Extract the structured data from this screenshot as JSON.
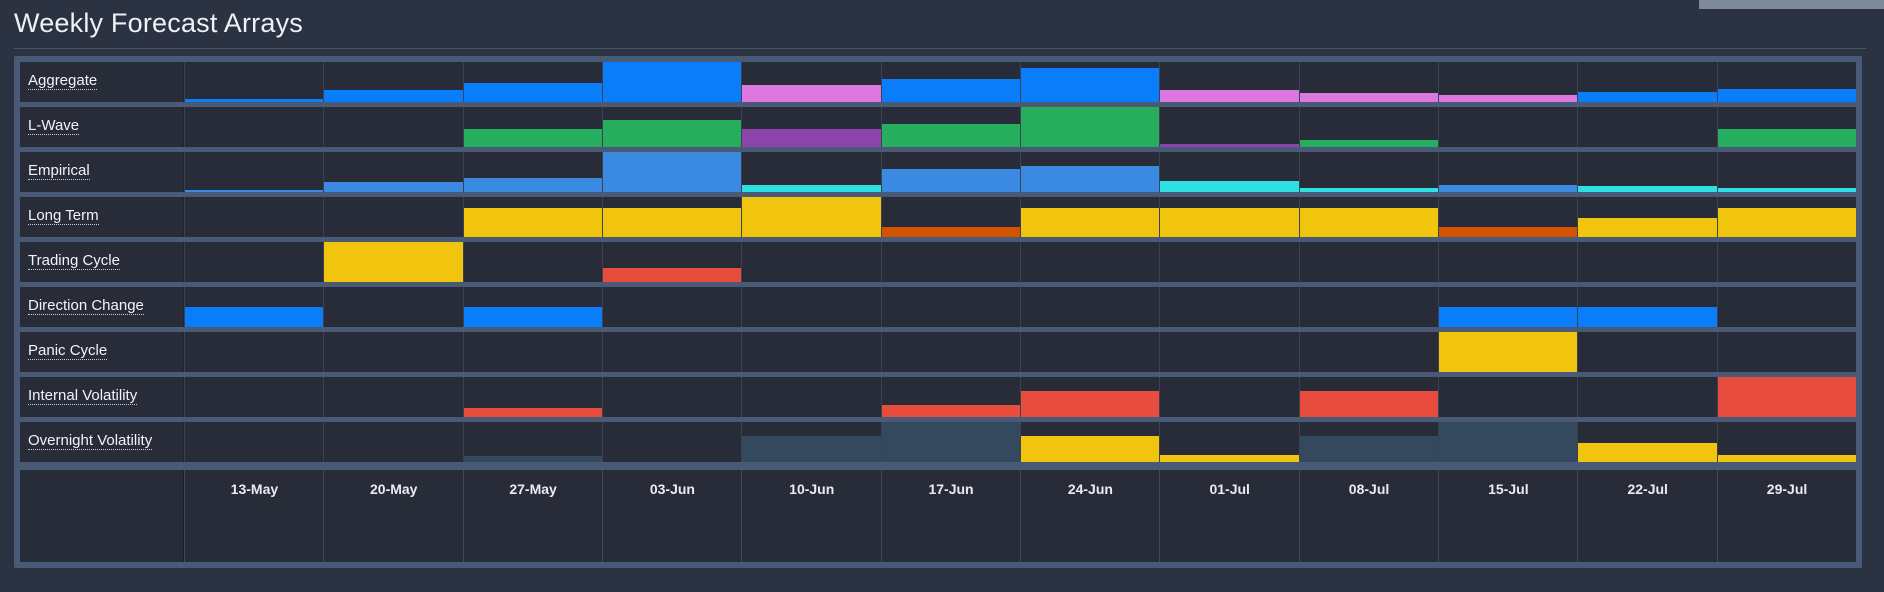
{
  "title": "Weekly Forecast Arrays",
  "colors": {
    "blue": "#0a7dfb",
    "pink": "#dc79e0",
    "green": "#27ad5e",
    "purple": "#8e44ad",
    "steel_blue": "#3a8ae2",
    "cyan": "#2fe0e3",
    "yellow": "#f1c50d",
    "orange": "#d35400",
    "red": "#e74c3c",
    "slate": "#34495e"
  },
  "weeks": [
    "13-May",
    "20-May",
    "27-May",
    "03-Jun",
    "10-Jun",
    "17-Jun",
    "24-Jun",
    "01-Jul",
    "08-Jul",
    "15-Jul",
    "22-Jul",
    "29-Jul"
  ],
  "rows": [
    {
      "label": "Aggregate",
      "cells": [
        {
          "level": 0.08,
          "color": "blue"
        },
        {
          "level": 0.3,
          "color": "blue"
        },
        {
          "level": 0.48,
          "color": "blue"
        },
        {
          "level": 1.0,
          "color": "blue"
        },
        {
          "level": 0.42,
          "color": "pink"
        },
        {
          "level": 0.58,
          "color": "blue"
        },
        {
          "level": 0.85,
          "color": "blue"
        },
        {
          "level": 0.3,
          "color": "pink"
        },
        {
          "level": 0.22,
          "color": "pink"
        },
        {
          "level": 0.18,
          "color": "pink"
        },
        {
          "level": 0.25,
          "color": "blue"
        },
        {
          "level": 0.33,
          "color": "blue"
        }
      ]
    },
    {
      "label": "L-Wave",
      "cells": [
        {
          "level": 0,
          "color": "green"
        },
        {
          "level": 0,
          "color": "green"
        },
        {
          "level": 0.46,
          "color": "green"
        },
        {
          "level": 0.68,
          "color": "green"
        },
        {
          "level": 0.46,
          "color": "purple"
        },
        {
          "level": 0.58,
          "color": "green"
        },
        {
          "level": 1.0,
          "color": "green"
        },
        {
          "level": 0.08,
          "color": "purple"
        },
        {
          "level": 0.18,
          "color": "green"
        },
        {
          "level": 0,
          "color": "green"
        },
        {
          "level": 0,
          "color": "green"
        },
        {
          "level": 0.46,
          "color": "green"
        }
      ]
    },
    {
      "label": "Empirical",
      "cells": [
        {
          "level": 0.05,
          "color": "steel_blue"
        },
        {
          "level": 0.24,
          "color": "steel_blue"
        },
        {
          "level": 0.34,
          "color": "steel_blue"
        },
        {
          "level": 1.0,
          "color": "steel_blue"
        },
        {
          "level": 0.18,
          "color": "cyan"
        },
        {
          "level": 0.58,
          "color": "steel_blue"
        },
        {
          "level": 0.64,
          "color": "steel_blue"
        },
        {
          "level": 0.28,
          "color": "cyan"
        },
        {
          "level": 0.09,
          "color": "cyan"
        },
        {
          "level": 0.18,
          "color": "steel_blue"
        },
        {
          "level": 0.14,
          "color": "cyan"
        },
        {
          "level": 0.1,
          "color": "cyan"
        }
      ]
    },
    {
      "label": "Long Term",
      "cells": [
        {
          "level": 0,
          "color": "yellow"
        },
        {
          "level": 0,
          "color": "yellow"
        },
        {
          "level": 0.72,
          "color": "yellow"
        },
        {
          "level": 0.72,
          "color": "yellow"
        },
        {
          "level": 1.0,
          "color": "yellow"
        },
        {
          "level": 0.24,
          "color": "orange"
        },
        {
          "level": 0.72,
          "color": "yellow"
        },
        {
          "level": 0.72,
          "color": "yellow"
        },
        {
          "level": 0.72,
          "color": "yellow"
        },
        {
          "level": 0.24,
          "color": "orange"
        },
        {
          "level": 0.48,
          "color": "yellow"
        },
        {
          "level": 0.72,
          "color": "yellow"
        }
      ]
    },
    {
      "label": "Trading Cycle",
      "cells": [
        {
          "level": 0,
          "color": "yellow"
        },
        {
          "level": 1.0,
          "color": "yellow"
        },
        {
          "level": 0,
          "color": "yellow"
        },
        {
          "level": 0.36,
          "color": "red"
        },
        {
          "level": 0,
          "color": "yellow"
        },
        {
          "level": 0,
          "color": "yellow"
        },
        {
          "level": 0,
          "color": "yellow"
        },
        {
          "level": 0,
          "color": "yellow"
        },
        {
          "level": 0,
          "color": "yellow"
        },
        {
          "level": 0,
          "color": "yellow"
        },
        {
          "level": 0,
          "color": "yellow"
        },
        {
          "level": 0,
          "color": "yellow"
        }
      ]
    },
    {
      "label": "Direction Change",
      "cells": [
        {
          "level": 0.5,
          "color": "blue"
        },
        {
          "level": 0,
          "color": "blue"
        },
        {
          "level": 0.5,
          "color": "blue"
        },
        {
          "level": 0,
          "color": "blue"
        },
        {
          "level": 0,
          "color": "blue"
        },
        {
          "level": 0,
          "color": "blue"
        },
        {
          "level": 0,
          "color": "blue"
        },
        {
          "level": 0,
          "color": "blue"
        },
        {
          "level": 0,
          "color": "blue"
        },
        {
          "level": 0.5,
          "color": "blue"
        },
        {
          "level": 0.5,
          "color": "blue"
        },
        {
          "level": 0,
          "color": "blue"
        }
      ]
    },
    {
      "label": "Panic Cycle",
      "cells": [
        {
          "level": 0,
          "color": "yellow"
        },
        {
          "level": 0,
          "color": "yellow"
        },
        {
          "level": 0,
          "color": "yellow"
        },
        {
          "level": 0,
          "color": "yellow"
        },
        {
          "level": 0,
          "color": "yellow"
        },
        {
          "level": 0,
          "color": "yellow"
        },
        {
          "level": 0,
          "color": "yellow"
        },
        {
          "level": 0,
          "color": "yellow"
        },
        {
          "level": 0,
          "color": "yellow"
        },
        {
          "level": 1.0,
          "color": "yellow"
        },
        {
          "level": 0,
          "color": "yellow"
        },
        {
          "level": 0,
          "color": "yellow"
        }
      ]
    },
    {
      "label": "Internal Volatility",
      "cells": [
        {
          "level": 0,
          "color": "red"
        },
        {
          "level": 0,
          "color": "red"
        },
        {
          "level": 0.22,
          "color": "red"
        },
        {
          "level": 0,
          "color": "red"
        },
        {
          "level": 0,
          "color": "red"
        },
        {
          "level": 0.3,
          "color": "red"
        },
        {
          "level": 0.66,
          "color": "red"
        },
        {
          "level": 0,
          "color": "red"
        },
        {
          "level": 0.66,
          "color": "red"
        },
        {
          "level": 0,
          "color": "red"
        },
        {
          "level": 0,
          "color": "red"
        },
        {
          "level": 1.0,
          "color": "red"
        }
      ]
    },
    {
      "label": "Overnight Volatility",
      "cells": [
        {
          "level": 0,
          "color": "slate"
        },
        {
          "level": 0,
          "color": "slate"
        },
        {
          "level": 0.16,
          "color": "slate"
        },
        {
          "level": 0,
          "color": "slate"
        },
        {
          "level": 0.66,
          "color": "slate"
        },
        {
          "level": 1.0,
          "color": "slate"
        },
        {
          "level": 0.66,
          "color": "yellow"
        },
        {
          "level": 0.18,
          "color": "yellow"
        },
        {
          "level": 0.66,
          "color": "slate"
        },
        {
          "level": 1.0,
          "color": "slate"
        },
        {
          "level": 0.48,
          "color": "yellow"
        },
        {
          "level": 0.18,
          "color": "yellow"
        }
      ]
    }
  ]
}
